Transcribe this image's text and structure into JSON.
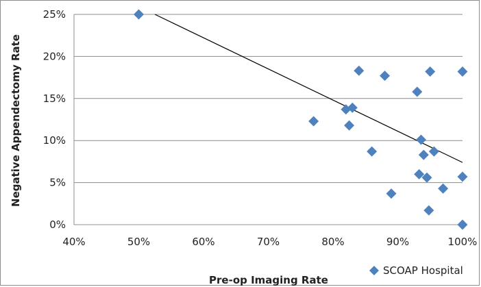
{
  "chart_data": {
    "type": "scatter",
    "title": "",
    "xlabel": "Pre-op Imaging Rate",
    "ylabel": "Negative Appendectomy Rate",
    "xlim": [
      0.4,
      1.0
    ],
    "ylim": [
      0.0,
      0.25
    ],
    "xticks": [
      "40%",
      "50%",
      "60%",
      "70%",
      "80%",
      "90%",
      "100%"
    ],
    "yticks": [
      "0%",
      "5%",
      "10%",
      "15%",
      "20%",
      "25%"
    ],
    "grid": "horizontal",
    "legend_position": "bottom-right",
    "series": [
      {
        "name": "SCOAP Hospital",
        "marker": "diamond",
        "color": "#4f81bd",
        "points": [
          {
            "x": 0.5,
            "y": 0.25
          },
          {
            "x": 0.77,
            "y": 0.123
          },
          {
            "x": 0.82,
            "y": 0.137
          },
          {
            "x": 0.825,
            "y": 0.118
          },
          {
            "x": 0.83,
            "y": 0.139
          },
          {
            "x": 0.84,
            "y": 0.183
          },
          {
            "x": 0.86,
            "y": 0.087
          },
          {
            "x": 0.88,
            "y": 0.177
          },
          {
            "x": 0.89,
            "y": 0.037
          },
          {
            "x": 0.93,
            "y": 0.158
          },
          {
            "x": 0.933,
            "y": 0.06
          },
          {
            "x": 0.936,
            "y": 0.101
          },
          {
            "x": 0.94,
            "y": 0.083
          },
          {
            "x": 0.945,
            "y": 0.056
          },
          {
            "x": 0.948,
            "y": 0.017
          },
          {
            "x": 0.95,
            "y": 0.182
          },
          {
            "x": 0.956,
            "y": 0.087
          },
          {
            "x": 0.97,
            "y": 0.043
          },
          {
            "x": 1.0,
            "y": 0.182
          },
          {
            "x": 1.0,
            "y": 0.057
          },
          {
            "x": 1.0,
            "y": 0.0
          }
        ]
      }
    ],
    "trendline": {
      "color": "#000000",
      "points": [
        {
          "x": 0.525,
          "y": 0.25
        },
        {
          "x": 1.0,
          "y": 0.074
        }
      ]
    }
  }
}
